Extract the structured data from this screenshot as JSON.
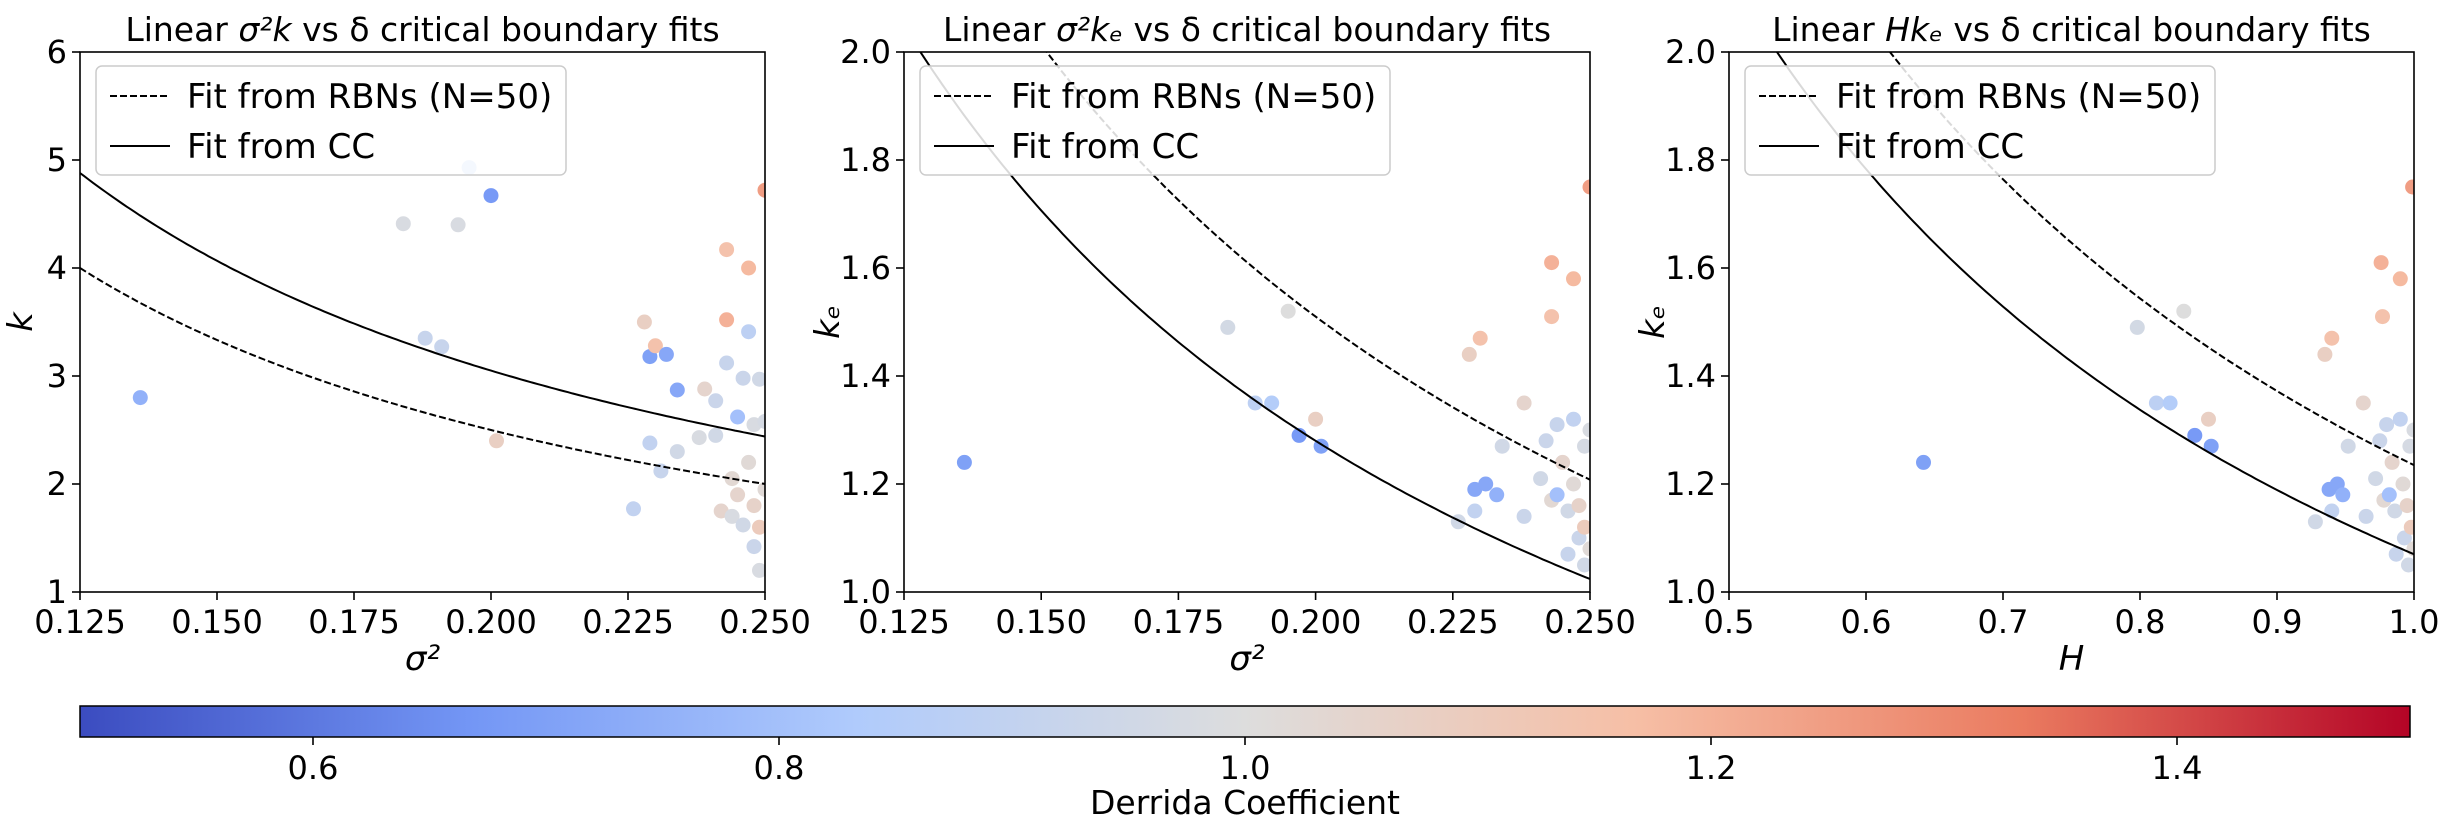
{
  "chart_data": [
    {
      "type": "scatter",
      "title_prefix": "Linear ",
      "title_math": "σ²k",
      "title_suffix": " vs δ critical boundary fits",
      "xlabel": "σ²",
      "ylabel": "k",
      "xlim": [
        0.125,
        0.25
      ],
      "ylim": [
        1,
        6
      ],
      "xticks": [
        0.125,
        0.15,
        0.175,
        0.2,
        0.225,
        0.25
      ],
      "xtick_labels": [
        "0.125",
        "0.150",
        "0.175",
        "0.200",
        "0.225",
        "0.250"
      ],
      "yticks": [
        1,
        2,
        3,
        4,
        5,
        6
      ],
      "ytick_labels": [
        "1",
        "2",
        "3",
        "4",
        "5",
        "6"
      ],
      "legend_position": "upper-left",
      "fit_lines": [
        {
          "name": "Fit from RBNs (N=50)",
          "style": "dashed",
          "curve": "c/x",
          "c": 0.5
        },
        {
          "name": "Fit from CC",
          "style": "solid",
          "curve": "c/x",
          "c": 0.61
        }
      ],
      "points": [
        {
          "x": 0.136,
          "y": 2.8,
          "d": 0.75
        },
        {
          "x": 0.184,
          "y": 4.41,
          "d": 0.98
        },
        {
          "x": 0.188,
          "y": 3.35,
          "d": 0.92
        },
        {
          "x": 0.191,
          "y": 3.27,
          "d": 0.92
        },
        {
          "x": 0.194,
          "y": 4.4,
          "d": 0.98
        },
        {
          "x": 0.196,
          "y": 4.93,
          "d": 0.86
        },
        {
          "x": 0.2,
          "y": 4.67,
          "d": 0.68
        },
        {
          "x": 0.201,
          "y": 2.4,
          "d": 1.08
        },
        {
          "x": 0.226,
          "y": 1.77,
          "d": 0.9
        },
        {
          "x": 0.228,
          "y": 3.5,
          "d": 1.08
        },
        {
          "x": 0.229,
          "y": 3.18,
          "d": 0.7
        },
        {
          "x": 0.229,
          "y": 2.38,
          "d": 0.9
        },
        {
          "x": 0.23,
          "y": 3.28,
          "d": 1.15
        },
        {
          "x": 0.231,
          "y": 2.12,
          "d": 0.92
        },
        {
          "x": 0.232,
          "y": 3.2,
          "d": 0.72
        },
        {
          "x": 0.234,
          "y": 2.87,
          "d": 0.72
        },
        {
          "x": 0.234,
          "y": 2.3,
          "d": 0.95
        },
        {
          "x": 0.238,
          "y": 2.43,
          "d": 0.98
        },
        {
          "x": 0.239,
          "y": 2.88,
          "d": 1.05
        },
        {
          "x": 0.241,
          "y": 2.77,
          "d": 0.93
        },
        {
          "x": 0.241,
          "y": 2.45,
          "d": 0.95
        },
        {
          "x": 0.242,
          "y": 1.75,
          "d": 1.05
        },
        {
          "x": 0.243,
          "y": 3.52,
          "d": 1.2
        },
        {
          "x": 0.243,
          "y": 4.17,
          "d": 1.15
        },
        {
          "x": 0.243,
          "y": 3.12,
          "d": 0.92
        },
        {
          "x": 0.244,
          "y": 2.05,
          "d": 1.03
        },
        {
          "x": 0.244,
          "y": 1.7,
          "d": 0.98
        },
        {
          "x": 0.245,
          "y": 2.62,
          "d": 0.8
        },
        {
          "x": 0.245,
          "y": 1.9,
          "d": 1.05
        },
        {
          "x": 0.246,
          "y": 2.98,
          "d": 0.93
        },
        {
          "x": 0.246,
          "y": 1.62,
          "d": 0.95
        },
        {
          "x": 0.247,
          "y": 4.0,
          "d": 1.18
        },
        {
          "x": 0.247,
          "y": 3.41,
          "d": 0.88
        },
        {
          "x": 0.247,
          "y": 2.2,
          "d": 1.02
        },
        {
          "x": 0.248,
          "y": 1.42,
          "d": 0.93
        },
        {
          "x": 0.248,
          "y": 1.8,
          "d": 1.06
        },
        {
          "x": 0.248,
          "y": 2.55,
          "d": 0.98
        },
        {
          "x": 0.249,
          "y": 1.2,
          "d": 0.98
        },
        {
          "x": 0.249,
          "y": 2.97,
          "d": 0.95
        },
        {
          "x": 0.249,
          "y": 1.6,
          "d": 1.1
        },
        {
          "x": 0.25,
          "y": 4.72,
          "d": 1.25
        },
        {
          "x": 0.25,
          "y": 2.58,
          "d": 0.97
        },
        {
          "x": 0.25,
          "y": 1.95,
          "d": 1.02
        }
      ]
    },
    {
      "type": "scatter",
      "title_prefix": "Linear ",
      "title_math": "σ²kₑ",
      "title_suffix": " vs δ critical boundary fits",
      "xlabel": "σ²",
      "ylabel": "kₑ",
      "xlim": [
        0.125,
        0.25
      ],
      "ylim": [
        1.0,
        2.0
      ],
      "xticks": [
        0.125,
        0.15,
        0.175,
        0.2,
        0.225,
        0.25
      ],
      "xtick_labels": [
        "0.125",
        "0.150",
        "0.175",
        "0.200",
        "0.225",
        "0.250"
      ],
      "yticks": [
        1.0,
        1.2,
        1.4,
        1.6,
        1.8,
        2.0
      ],
      "ytick_labels": [
        "1.0",
        "1.2",
        "1.4",
        "1.6",
        "1.8",
        "2.0"
      ],
      "legend_position": "upper-left",
      "fit_lines": [
        {
          "name": "Fit from RBNs (N=50)",
          "style": "dashed",
          "curve": "c/x",
          "c": 0.302
        },
        {
          "name": "Fit from CC",
          "style": "solid",
          "curve": "c/x",
          "c": 0.256
        }
      ],
      "points": [
        {
          "x": 0.136,
          "y": 1.24,
          "d": 0.7
        },
        {
          "x": 0.184,
          "y": 1.49,
          "d": 0.96
        },
        {
          "x": 0.189,
          "y": 1.35,
          "d": 0.88
        },
        {
          "x": 0.192,
          "y": 1.35,
          "d": 0.85
        },
        {
          "x": 0.195,
          "y": 1.52,
          "d": 1.0
        },
        {
          "x": 0.197,
          "y": 1.29,
          "d": 0.68
        },
        {
          "x": 0.2,
          "y": 1.32,
          "d": 1.08
        },
        {
          "x": 0.201,
          "y": 1.27,
          "d": 0.7
        },
        {
          "x": 0.226,
          "y": 1.13,
          "d": 0.95
        },
        {
          "x": 0.228,
          "y": 1.44,
          "d": 1.08
        },
        {
          "x": 0.229,
          "y": 1.19,
          "d": 0.72
        },
        {
          "x": 0.229,
          "y": 1.15,
          "d": 0.9
        },
        {
          "x": 0.23,
          "y": 1.47,
          "d": 1.15
        },
        {
          "x": 0.231,
          "y": 1.2,
          "d": 0.72
        },
        {
          "x": 0.233,
          "y": 1.18,
          "d": 0.75
        },
        {
          "x": 0.234,
          "y": 1.27,
          "d": 0.95
        },
        {
          "x": 0.238,
          "y": 1.35,
          "d": 1.05
        },
        {
          "x": 0.238,
          "y": 1.14,
          "d": 0.93
        },
        {
          "x": 0.241,
          "y": 1.21,
          "d": 0.95
        },
        {
          "x": 0.242,
          "y": 1.28,
          "d": 0.93
        },
        {
          "x": 0.243,
          "y": 1.61,
          "d": 1.2
        },
        {
          "x": 0.243,
          "y": 1.51,
          "d": 1.15
        },
        {
          "x": 0.243,
          "y": 1.17,
          "d": 1.03
        },
        {
          "x": 0.244,
          "y": 1.31,
          "d": 0.92
        },
        {
          "x": 0.244,
          "y": 1.18,
          "d": 0.8
        },
        {
          "x": 0.245,
          "y": 1.24,
          "d": 1.05
        },
        {
          "x": 0.246,
          "y": 1.15,
          "d": 0.95
        },
        {
          "x": 0.246,
          "y": 1.07,
          "d": 0.92
        },
        {
          "x": 0.247,
          "y": 1.58,
          "d": 1.18
        },
        {
          "x": 0.247,
          "y": 1.32,
          "d": 0.9
        },
        {
          "x": 0.247,
          "y": 1.2,
          "d": 1.02
        },
        {
          "x": 0.248,
          "y": 1.1,
          "d": 0.93
        },
        {
          "x": 0.248,
          "y": 1.16,
          "d": 1.06
        },
        {
          "x": 0.249,
          "y": 1.05,
          "d": 0.95
        },
        {
          "x": 0.249,
          "y": 1.27,
          "d": 0.97
        },
        {
          "x": 0.249,
          "y": 1.12,
          "d": 1.1
        },
        {
          "x": 0.25,
          "y": 1.75,
          "d": 1.25
        },
        {
          "x": 0.25,
          "y": 1.3,
          "d": 0.98
        },
        {
          "x": 0.25,
          "y": 1.08,
          "d": 1.02
        }
      ]
    },
    {
      "type": "scatter",
      "title_prefix": "Linear ",
      "title_math": "Hkₑ",
      "title_suffix": " vs δ critical boundary fits",
      "xlabel": "H",
      "ylabel": "kₑ",
      "xlim": [
        0.5,
        1.0
      ],
      "ylim": [
        1.0,
        2.0
      ],
      "xticks": [
        0.5,
        0.6,
        0.7,
        0.8,
        0.9,
        1.0
      ],
      "xtick_labels": [
        "0.5",
        "0.6",
        "0.7",
        "0.8",
        "0.9",
        "1.0"
      ],
      "yticks": [
        1.0,
        1.2,
        1.4,
        1.6,
        1.8,
        2.0
      ],
      "ytick_labels": [
        "1.0",
        "1.2",
        "1.4",
        "1.6",
        "1.8",
        "2.0"
      ],
      "legend_position": "upper-left",
      "fit_lines": [
        {
          "name": "Fit from RBNs (N=50)",
          "style": "dashed",
          "curve": "c/x",
          "c": 1.235
        },
        {
          "name": "Fit from CC",
          "style": "solid",
          "curve": "c/x",
          "c": 1.07
        }
      ],
      "points": [
        {
          "x": 0.642,
          "y": 1.24,
          "d": 0.7
        },
        {
          "x": 0.798,
          "y": 1.49,
          "d": 0.96
        },
        {
          "x": 0.812,
          "y": 1.35,
          "d": 0.88
        },
        {
          "x": 0.822,
          "y": 1.35,
          "d": 0.85
        },
        {
          "x": 0.832,
          "y": 1.52,
          "d": 1.0
        },
        {
          "x": 0.84,
          "y": 1.29,
          "d": 0.68
        },
        {
          "x": 0.85,
          "y": 1.32,
          "d": 1.08
        },
        {
          "x": 0.852,
          "y": 1.27,
          "d": 0.7
        },
        {
          "x": 0.928,
          "y": 1.13,
          "d": 0.95
        },
        {
          "x": 0.935,
          "y": 1.44,
          "d": 1.08
        },
        {
          "x": 0.938,
          "y": 1.19,
          "d": 0.72
        },
        {
          "x": 0.94,
          "y": 1.15,
          "d": 0.9
        },
        {
          "x": 0.94,
          "y": 1.47,
          "d": 1.15
        },
        {
          "x": 0.944,
          "y": 1.2,
          "d": 0.72
        },
        {
          "x": 0.948,
          "y": 1.18,
          "d": 0.75
        },
        {
          "x": 0.952,
          "y": 1.27,
          "d": 0.95
        },
        {
          "x": 0.963,
          "y": 1.35,
          "d": 1.05
        },
        {
          "x": 0.965,
          "y": 1.14,
          "d": 0.93
        },
        {
          "x": 0.972,
          "y": 1.21,
          "d": 0.95
        },
        {
          "x": 0.975,
          "y": 1.28,
          "d": 0.93
        },
        {
          "x": 0.976,
          "y": 1.61,
          "d": 1.2
        },
        {
          "x": 0.977,
          "y": 1.51,
          "d": 1.15
        },
        {
          "x": 0.978,
          "y": 1.17,
          "d": 1.03
        },
        {
          "x": 0.98,
          "y": 1.31,
          "d": 0.92
        },
        {
          "x": 0.982,
          "y": 1.18,
          "d": 0.8
        },
        {
          "x": 0.984,
          "y": 1.24,
          "d": 1.05
        },
        {
          "x": 0.986,
          "y": 1.15,
          "d": 0.95
        },
        {
          "x": 0.987,
          "y": 1.07,
          "d": 0.92
        },
        {
          "x": 0.99,
          "y": 1.58,
          "d": 1.18
        },
        {
          "x": 0.99,
          "y": 1.32,
          "d": 0.9
        },
        {
          "x": 0.992,
          "y": 1.2,
          "d": 1.02
        },
        {
          "x": 0.993,
          "y": 1.1,
          "d": 0.93
        },
        {
          "x": 0.995,
          "y": 1.16,
          "d": 1.06
        },
        {
          "x": 0.996,
          "y": 1.05,
          "d": 0.95
        },
        {
          "x": 0.997,
          "y": 1.27,
          "d": 0.97
        },
        {
          "x": 0.998,
          "y": 1.12,
          "d": 1.1
        },
        {
          "x": 0.999,
          "y": 1.75,
          "d": 1.25
        },
        {
          "x": 1.0,
          "y": 1.3,
          "d": 0.98
        },
        {
          "x": 1.0,
          "y": 1.08,
          "d": 1.02
        }
      ]
    }
  ],
  "colorbar": {
    "label": "Derrida Coefficient",
    "colormap": "coolwarm",
    "range": [
      0.5,
      1.5
    ],
    "ticks": [
      0.6,
      0.8,
      1.0,
      1.2,
      1.4
    ],
    "tick_labels": [
      "0.6",
      "0.8",
      "1.0",
      "1.2",
      "1.4"
    ],
    "colors": [
      "#3b4cc0",
      "#7396f5",
      "#b0cbfc",
      "#dddddd",
      "#f6bfa6",
      "#ea7b60",
      "#b40426"
    ]
  }
}
